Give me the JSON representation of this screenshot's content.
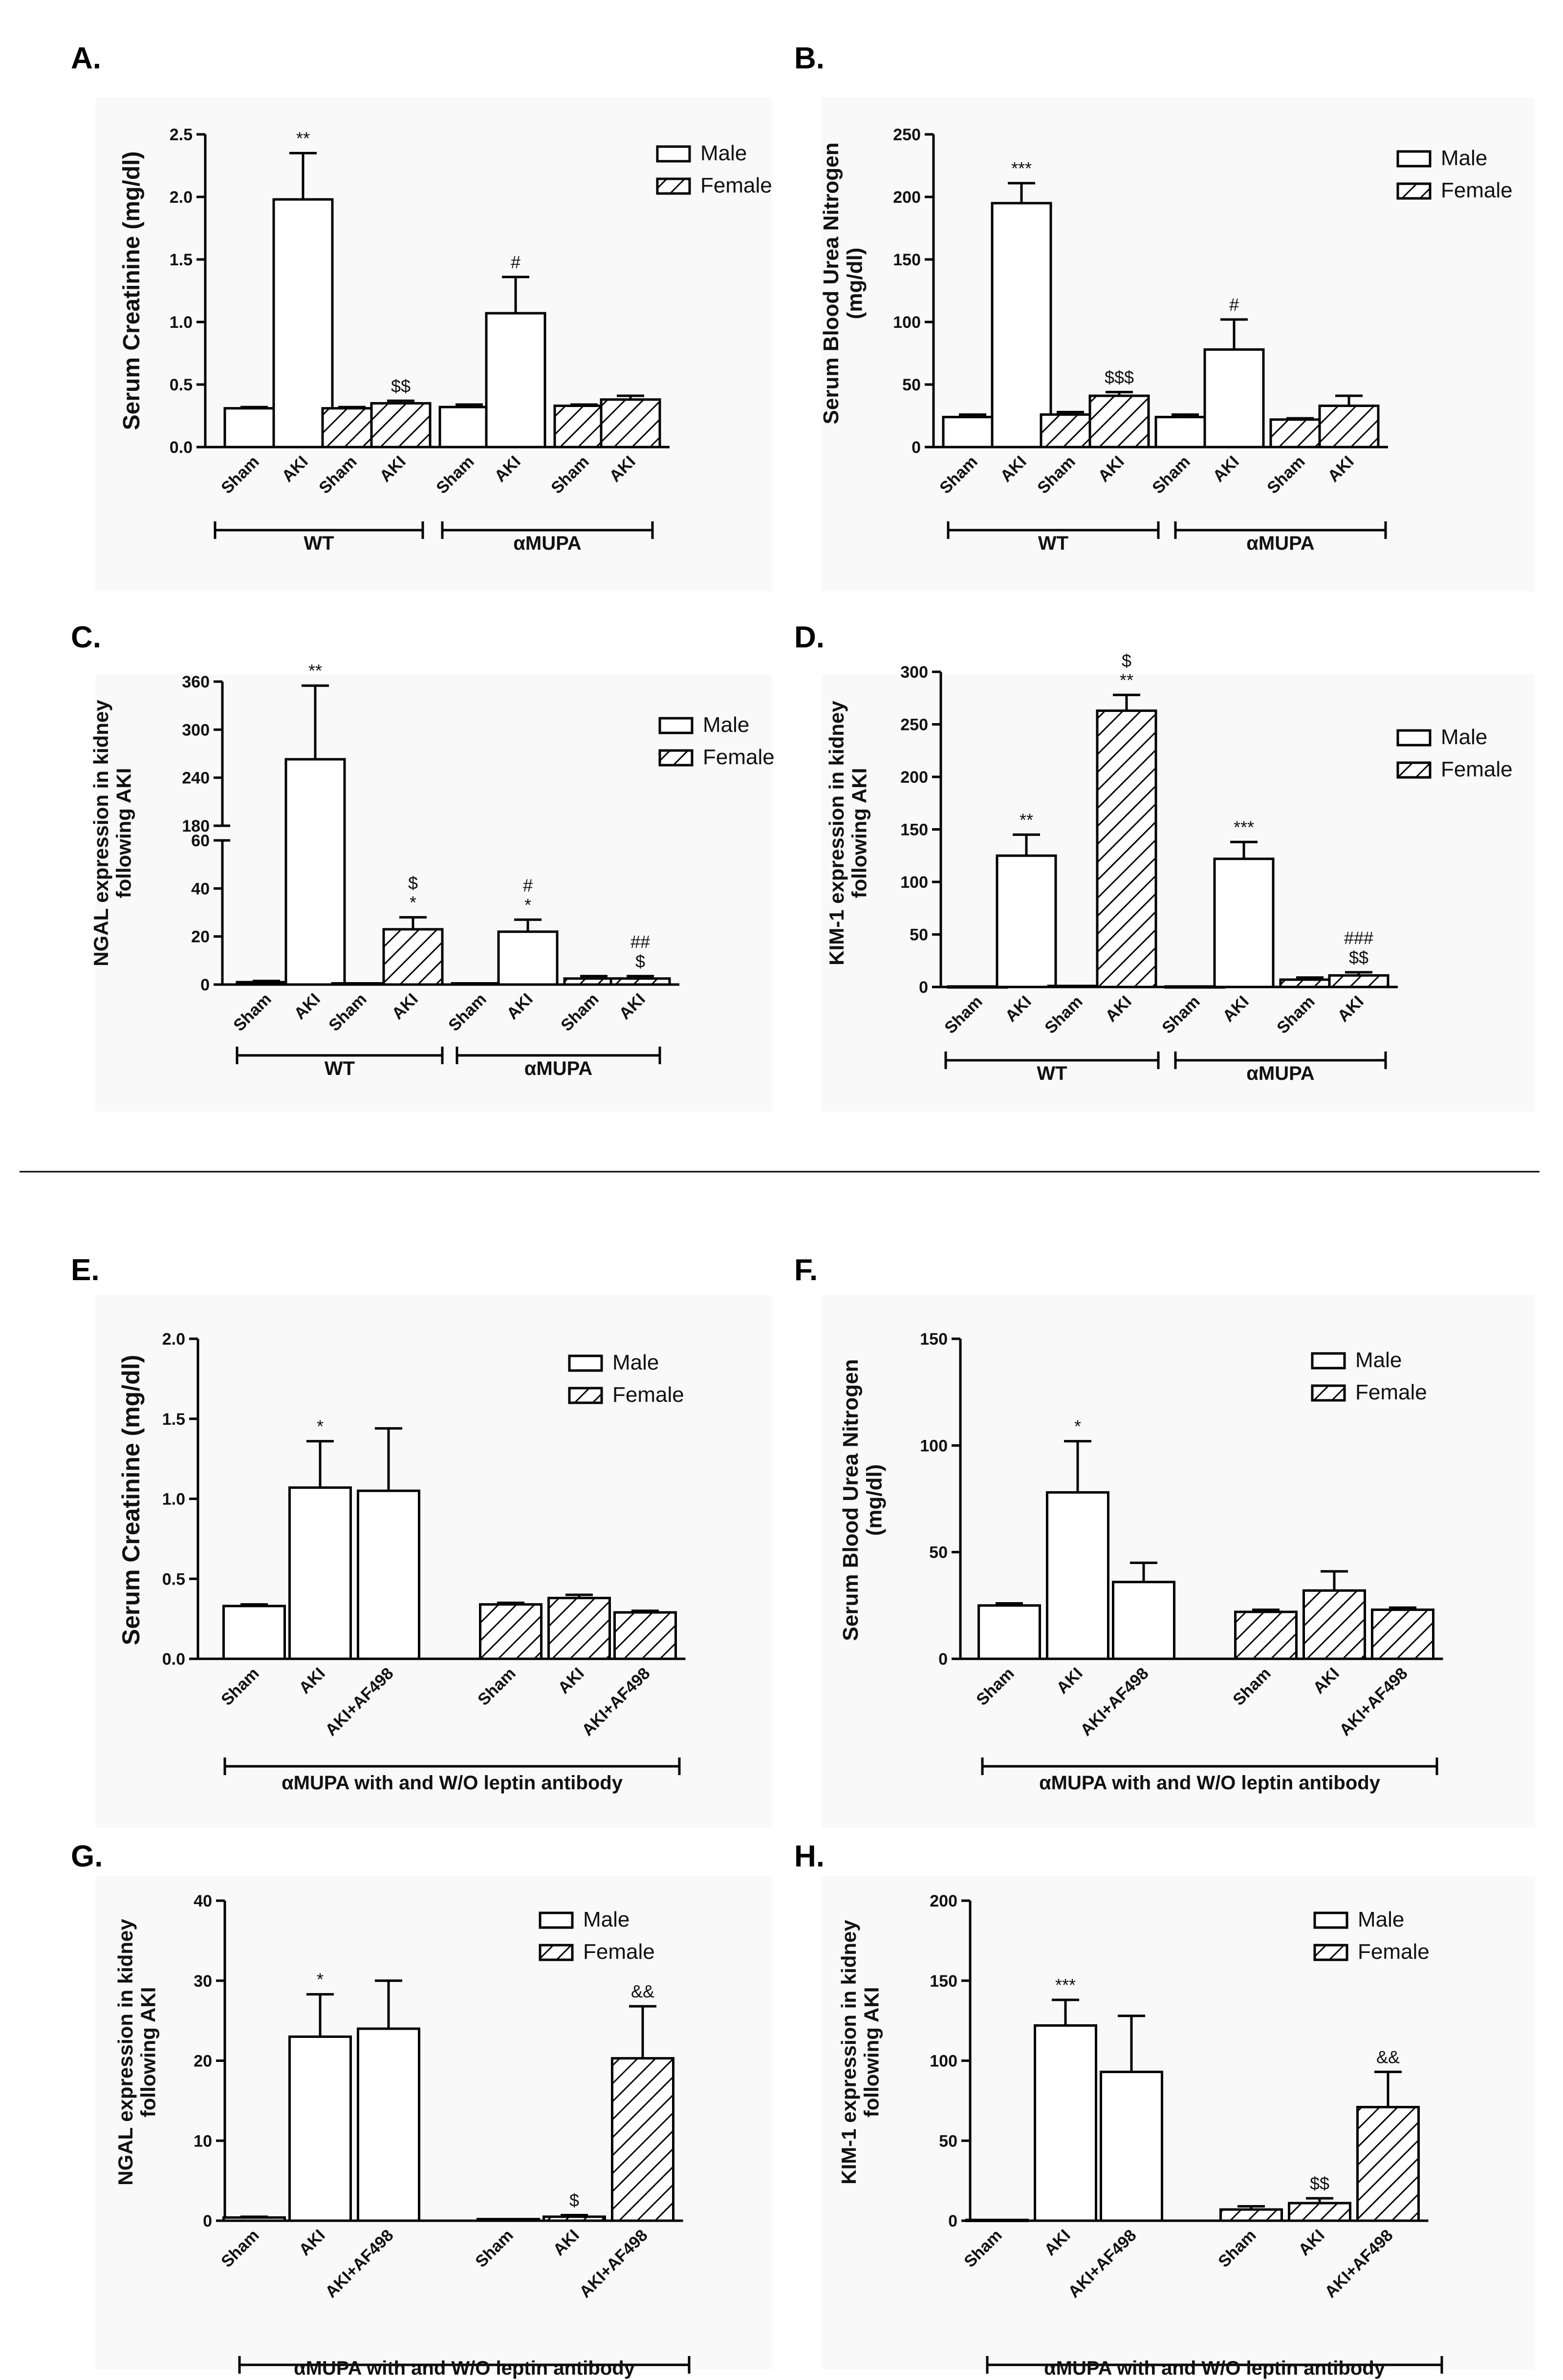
{
  "legend": {
    "male": "Male",
    "female": "Female"
  },
  "chart_data": [
    {
      "id": "A",
      "panel_label": "A.",
      "type": "bar",
      "ylabel": "Serum Creatinine (mg/dl)",
      "yticks": [
        "0.0",
        "0.5",
        "1.0",
        "1.5",
        "2.0",
        "2.5"
      ],
      "ymax": 2.5,
      "categories": [
        "Sham",
        "AKI",
        "Sham",
        "AKI",
        "Sham",
        "AKI",
        "Sham",
        "AKI"
      ],
      "sex": [
        "male",
        "male",
        "female",
        "female",
        "male",
        "male",
        "female",
        "female"
      ],
      "values": [
        0.31,
        1.98,
        0.31,
        0.35,
        0.32,
        1.07,
        0.33,
        0.38
      ],
      "errors": [
        0.01,
        0.37,
        0.01,
        0.02,
        0.02,
        0.29,
        0.01,
        0.03
      ],
      "annotations": [
        [
          "",
          ""
        ],
        [
          "**",
          ""
        ],
        [
          "",
          ""
        ],
        [
          "$$",
          ""
        ],
        [
          "",
          ""
        ],
        [
          "#",
          ""
        ],
        [
          "",
          ""
        ],
        [
          "",
          ""
        ]
      ],
      "groups": [
        {
          "label": "WT",
          "span": [
            0,
            3
          ]
        },
        {
          "label": "αMUPA",
          "span": [
            4,
            7
          ]
        }
      ]
    },
    {
      "id": "B",
      "panel_label": "B.",
      "type": "bar",
      "ylabel": [
        "Serum Blood Urea Nitrogen",
        "(mg/dl)"
      ],
      "yticks": [
        "0",
        "50",
        "100",
        "150",
        "200",
        "250"
      ],
      "ymax": 250,
      "categories": [
        "Sham",
        "AKI",
        "Sham",
        "AKI",
        "Sham",
        "AKI",
        "Sham",
        "AKI"
      ],
      "sex": [
        "male",
        "male",
        "female",
        "female",
        "male",
        "male",
        "female",
        "female"
      ],
      "values": [
        24,
        195,
        26,
        41,
        24,
        78,
        22,
        33
      ],
      "errors": [
        2,
        16,
        2,
        3,
        2,
        24,
        1,
        8
      ],
      "annotations": [
        [
          "",
          ""
        ],
        [
          "***",
          ""
        ],
        [
          "",
          ""
        ],
        [
          "$$$",
          ""
        ],
        [
          "",
          ""
        ],
        [
          "#",
          ""
        ],
        [
          "",
          ""
        ],
        [
          "",
          ""
        ]
      ],
      "groups": [
        {
          "label": "WT",
          "span": [
            0,
            3
          ]
        },
        {
          "label": "αMUPA",
          "span": [
            4,
            7
          ]
        }
      ]
    },
    {
      "id": "C",
      "panel_label": "C.",
      "type": "bar",
      "broken_axis": true,
      "ylabel": [
        "NGAL expression in kidney",
        "following AKI"
      ],
      "yticks_low": [
        "0",
        "20",
        "40",
        "60"
      ],
      "yticks_high": [
        "180",
        "240",
        "300",
        "360"
      ],
      "categories": [
        "Sham",
        "AKI",
        "Sham",
        "AKI",
        "Sham",
        "AKI",
        "Sham",
        "AKI"
      ],
      "sex": [
        "male",
        "male",
        "female",
        "female",
        "male",
        "male",
        "female",
        "female"
      ],
      "values": [
        1,
        263,
        0.5,
        23,
        0.5,
        22,
        2.5,
        2.5
      ],
      "errors": [
        0.5,
        92,
        0.2,
        5,
        0.2,
        5,
        1,
        1
      ],
      "annotations": [
        [
          "",
          ""
        ],
        [
          "**",
          ""
        ],
        [
          "",
          ""
        ],
        [
          "*",
          "$"
        ],
        [
          "",
          ""
        ],
        [
          "*",
          "#"
        ],
        [
          "",
          ""
        ],
        [
          "$",
          "##"
        ]
      ],
      "groups": [
        {
          "label": "WT",
          "span": [
            0,
            3
          ]
        },
        {
          "label": "αMUPA",
          "span": [
            4,
            7
          ]
        }
      ]
    },
    {
      "id": "D",
      "panel_label": "D.",
      "type": "bar",
      "ylabel": [
        "KIM-1 expression in kidney",
        "following AKI"
      ],
      "yticks": [
        "0",
        "50",
        "100",
        "150",
        "200",
        "250",
        "300"
      ],
      "ymax": 300,
      "categories": [
        "Sham",
        "AKI",
        "Sham",
        "AKI",
        "Sham",
        "AKI",
        "Sham",
        "AKI"
      ],
      "sex": [
        "male",
        "male",
        "female",
        "female",
        "male",
        "male",
        "female",
        "female"
      ],
      "values": [
        0.5,
        125,
        1,
        263,
        0.5,
        122,
        7,
        11
      ],
      "errors": [
        0.2,
        20,
        0.3,
        15,
        0.2,
        16,
        2,
        3
      ],
      "annotations": [
        [
          "",
          ""
        ],
        [
          "**",
          ""
        ],
        [
          "",
          ""
        ],
        [
          "**",
          "$"
        ],
        [
          "",
          ""
        ],
        [
          "***",
          ""
        ],
        [
          "",
          ""
        ],
        [
          "$$",
          "###"
        ]
      ],
      "groups": [
        {
          "label": "WT",
          "span": [
            0,
            3
          ]
        },
        {
          "label": "αMUPA",
          "span": [
            4,
            7
          ]
        }
      ]
    },
    {
      "id": "E",
      "panel_label": "E.",
      "type": "bar",
      "ylabel": "Serum Creatinine (mg/dl)",
      "yticks": [
        "0.0",
        "0.5",
        "1.0",
        "1.5",
        "2.0"
      ],
      "ymax": 2.0,
      "categories": [
        "Sham",
        "AKI",
        "AKI+AF498",
        "Sham",
        "AKI",
        "AKI+AF498"
      ],
      "sex": [
        "male",
        "male",
        "male",
        "female",
        "female",
        "female"
      ],
      "values": [
        0.33,
        1.07,
        1.05,
        0.34,
        0.38,
        0.29
      ],
      "errors": [
        0.01,
        0.29,
        0.39,
        0.01,
        0.02,
        0.01
      ],
      "annotations": [
        [
          "",
          ""
        ],
        [
          "*",
          ""
        ],
        [
          "",
          ""
        ],
        [
          "",
          ""
        ],
        [
          "",
          ""
        ],
        [
          "",
          ""
        ]
      ],
      "groups": [
        {
          "label": "αMUPA with and W/O leptin antibody",
          "span": [
            0,
            5
          ]
        }
      ]
    },
    {
      "id": "F",
      "panel_label": "F.",
      "type": "bar",
      "ylabel": [
        "Serum Blood Urea Nitrogen",
        "(mg/dl)"
      ],
      "yticks": [
        "0",
        "50",
        "100",
        "150"
      ],
      "ymax": 150,
      "categories": [
        "Sham",
        "AKI",
        "AKI+AF498",
        "Sham",
        "AKI",
        "AKI+AF498"
      ],
      "sex": [
        "male",
        "male",
        "male",
        "female",
        "female",
        "female"
      ],
      "values": [
        25,
        78,
        36,
        22,
        32,
        23
      ],
      "errors": [
        1,
        24,
        9,
        1,
        9,
        1
      ],
      "annotations": [
        [
          "",
          ""
        ],
        [
          "*",
          ""
        ],
        [
          "",
          ""
        ],
        [
          "",
          ""
        ],
        [
          "",
          ""
        ],
        [
          "",
          ""
        ]
      ],
      "groups": [
        {
          "label": "αMUPA with and W/O leptin antibody",
          "span": [
            0,
            5
          ]
        }
      ]
    },
    {
      "id": "G",
      "panel_label": "G.",
      "type": "bar",
      "ylabel": [
        "NGAL expression in kidney",
        "following AKI"
      ],
      "yticks": [
        "0",
        "10",
        "20",
        "30",
        "40"
      ],
      "ymax": 40,
      "categories": [
        "Sham",
        "AKI",
        "AKI+AF498",
        "Sham",
        "AKI",
        "AKI+AF498"
      ],
      "sex": [
        "male",
        "male",
        "male",
        "female",
        "female",
        "female"
      ],
      "values": [
        0.4,
        23,
        24,
        0.2,
        0.5,
        20.3
      ],
      "errors": [
        0.1,
        5.3,
        6,
        0.1,
        0.2,
        6.5
      ],
      "annotations": [
        [
          "",
          ""
        ],
        [
          "*",
          ""
        ],
        [
          "",
          ""
        ],
        [
          "",
          ""
        ],
        [
          "$",
          ""
        ],
        [
          "&&",
          ""
        ]
      ],
      "groups": [
        {
          "label": "αMUPA with and W/O leptin antibody",
          "span": [
            0,
            5
          ]
        }
      ]
    },
    {
      "id": "H",
      "panel_label": "H.",
      "type": "bar",
      "ylabel": [
        "KIM-1 expression in kidney",
        "following AKI"
      ],
      "yticks": [
        "0",
        "50",
        "100",
        "150",
        "200"
      ],
      "ymax": 200,
      "categories": [
        "Sham",
        "AKI",
        "AKI+AF498",
        "Sham",
        "AKI",
        "AKI+AF498"
      ],
      "sex": [
        "male",
        "male",
        "male",
        "female",
        "female",
        "female"
      ],
      "values": [
        0.5,
        122,
        93,
        7,
        11,
        71
      ],
      "errors": [
        0.2,
        16,
        35,
        2,
        3,
        22
      ],
      "annotations": [
        [
          "",
          ""
        ],
        [
          "***",
          ""
        ],
        [
          "",
          ""
        ],
        [
          "",
          ""
        ],
        [
          "$$",
          ""
        ],
        [
          "&&",
          ""
        ]
      ],
      "groups": [
        {
          "label": "αMUPA with and W/O leptin antibody",
          "span": [
            0,
            5
          ]
        }
      ]
    }
  ]
}
